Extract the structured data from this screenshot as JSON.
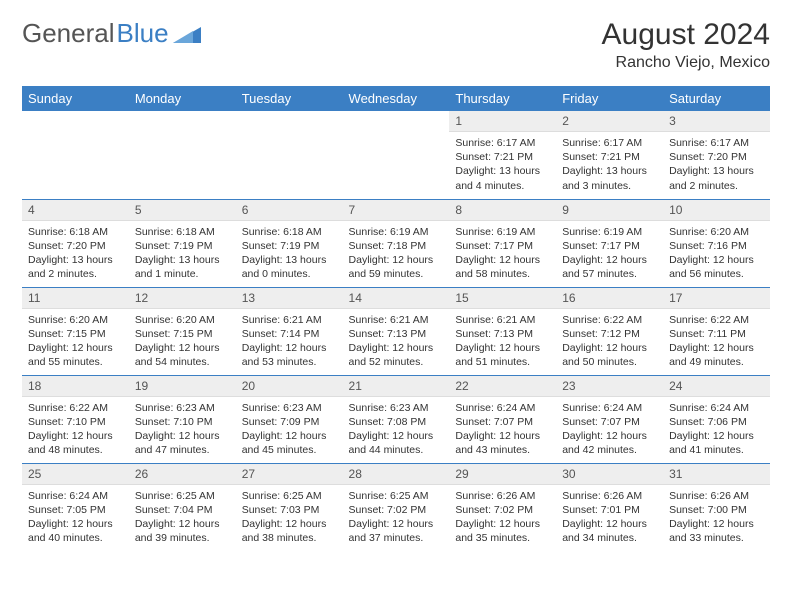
{
  "brand": {
    "part1": "General",
    "part2": "Blue"
  },
  "title": "August 2024",
  "subtitle": "Rancho Viejo, Mexico",
  "colors": {
    "header_bg": "#3b7fc4",
    "header_fg": "#ffffff",
    "daynum_bg": "#eeeeee",
    "row_border": "#3b7fc4",
    "text": "#333333"
  },
  "dayHeaders": [
    "Sunday",
    "Monday",
    "Tuesday",
    "Wednesday",
    "Thursday",
    "Friday",
    "Saturday"
  ],
  "weeks": [
    [
      {
        "empty": true
      },
      {
        "empty": true
      },
      {
        "empty": true
      },
      {
        "empty": true
      },
      {
        "day": "1",
        "sunrise": "6:17 AM",
        "sunset": "7:21 PM",
        "daylight": "13 hours and 4 minutes."
      },
      {
        "day": "2",
        "sunrise": "6:17 AM",
        "sunset": "7:21 PM",
        "daylight": "13 hours and 3 minutes."
      },
      {
        "day": "3",
        "sunrise": "6:17 AM",
        "sunset": "7:20 PM",
        "daylight": "13 hours and 2 minutes."
      }
    ],
    [
      {
        "day": "4",
        "sunrise": "6:18 AM",
        "sunset": "7:20 PM",
        "daylight": "13 hours and 2 minutes."
      },
      {
        "day": "5",
        "sunrise": "6:18 AM",
        "sunset": "7:19 PM",
        "daylight": "13 hours and 1 minute."
      },
      {
        "day": "6",
        "sunrise": "6:18 AM",
        "sunset": "7:19 PM",
        "daylight": "13 hours and 0 minutes."
      },
      {
        "day": "7",
        "sunrise": "6:19 AM",
        "sunset": "7:18 PM",
        "daylight": "12 hours and 59 minutes."
      },
      {
        "day": "8",
        "sunrise": "6:19 AM",
        "sunset": "7:17 PM",
        "daylight": "12 hours and 58 minutes."
      },
      {
        "day": "9",
        "sunrise": "6:19 AM",
        "sunset": "7:17 PM",
        "daylight": "12 hours and 57 minutes."
      },
      {
        "day": "10",
        "sunrise": "6:20 AM",
        "sunset": "7:16 PM",
        "daylight": "12 hours and 56 minutes."
      }
    ],
    [
      {
        "day": "11",
        "sunrise": "6:20 AM",
        "sunset": "7:15 PM",
        "daylight": "12 hours and 55 minutes."
      },
      {
        "day": "12",
        "sunrise": "6:20 AM",
        "sunset": "7:15 PM",
        "daylight": "12 hours and 54 minutes."
      },
      {
        "day": "13",
        "sunrise": "6:21 AM",
        "sunset": "7:14 PM",
        "daylight": "12 hours and 53 minutes."
      },
      {
        "day": "14",
        "sunrise": "6:21 AM",
        "sunset": "7:13 PM",
        "daylight": "12 hours and 52 minutes."
      },
      {
        "day": "15",
        "sunrise": "6:21 AM",
        "sunset": "7:13 PM",
        "daylight": "12 hours and 51 minutes."
      },
      {
        "day": "16",
        "sunrise": "6:22 AM",
        "sunset": "7:12 PM",
        "daylight": "12 hours and 50 minutes."
      },
      {
        "day": "17",
        "sunrise": "6:22 AM",
        "sunset": "7:11 PM",
        "daylight": "12 hours and 49 minutes."
      }
    ],
    [
      {
        "day": "18",
        "sunrise": "6:22 AM",
        "sunset": "7:10 PM",
        "daylight": "12 hours and 48 minutes."
      },
      {
        "day": "19",
        "sunrise": "6:23 AM",
        "sunset": "7:10 PM",
        "daylight": "12 hours and 47 minutes."
      },
      {
        "day": "20",
        "sunrise": "6:23 AM",
        "sunset": "7:09 PM",
        "daylight": "12 hours and 45 minutes."
      },
      {
        "day": "21",
        "sunrise": "6:23 AM",
        "sunset": "7:08 PM",
        "daylight": "12 hours and 44 minutes."
      },
      {
        "day": "22",
        "sunrise": "6:24 AM",
        "sunset": "7:07 PM",
        "daylight": "12 hours and 43 minutes."
      },
      {
        "day": "23",
        "sunrise": "6:24 AM",
        "sunset": "7:07 PM",
        "daylight": "12 hours and 42 minutes."
      },
      {
        "day": "24",
        "sunrise": "6:24 AM",
        "sunset": "7:06 PM",
        "daylight": "12 hours and 41 minutes."
      }
    ],
    [
      {
        "day": "25",
        "sunrise": "6:24 AM",
        "sunset": "7:05 PM",
        "daylight": "12 hours and 40 minutes."
      },
      {
        "day": "26",
        "sunrise": "6:25 AM",
        "sunset": "7:04 PM",
        "daylight": "12 hours and 39 minutes."
      },
      {
        "day": "27",
        "sunrise": "6:25 AM",
        "sunset": "7:03 PM",
        "daylight": "12 hours and 38 minutes."
      },
      {
        "day": "28",
        "sunrise": "6:25 AM",
        "sunset": "7:02 PM",
        "daylight": "12 hours and 37 minutes."
      },
      {
        "day": "29",
        "sunrise": "6:26 AM",
        "sunset": "7:02 PM",
        "daylight": "12 hours and 35 minutes."
      },
      {
        "day": "30",
        "sunrise": "6:26 AM",
        "sunset": "7:01 PM",
        "daylight": "12 hours and 34 minutes."
      },
      {
        "day": "31",
        "sunrise": "6:26 AM",
        "sunset": "7:00 PM",
        "daylight": "12 hours and 33 minutes."
      }
    ]
  ]
}
